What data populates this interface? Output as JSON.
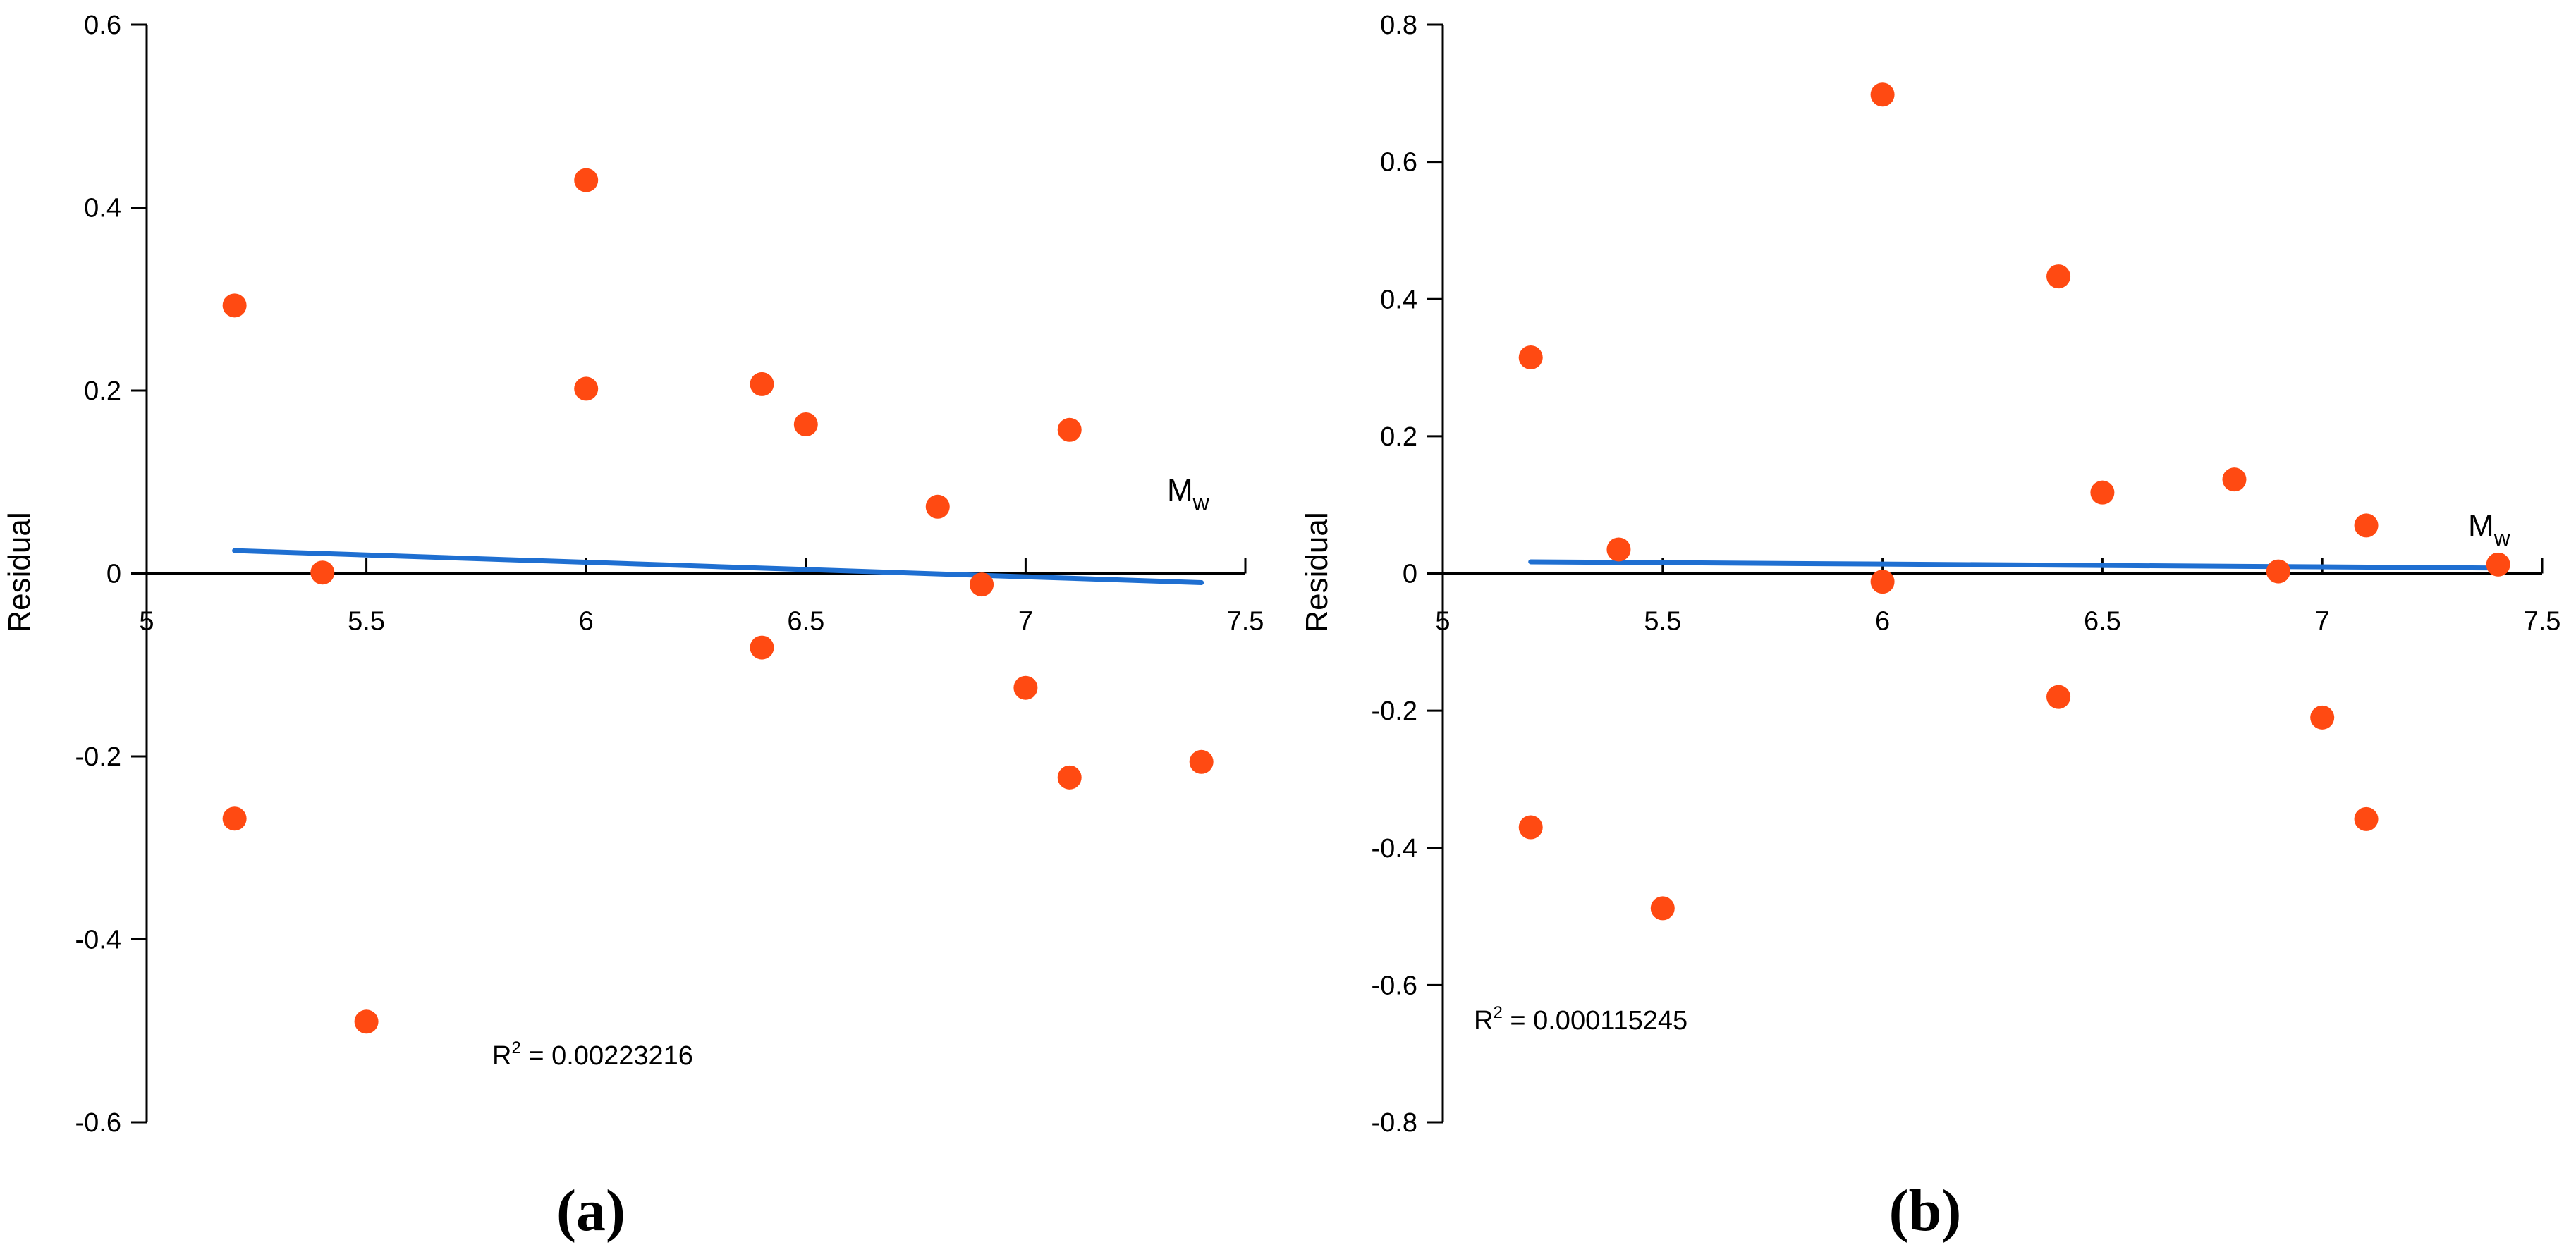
{
  "chart_data": [
    {
      "type": "scatter",
      "panel_label": "(a)",
      "ylabel": "Residual",
      "x_annotation": "M",
      "x_annotation_sub": "w",
      "xlim": [
        5,
        7.5
      ],
      "ylim": [
        -0.6,
        0.6
      ],
      "x_ticks": [
        5,
        5.5,
        6,
        6.5,
        7,
        7.5
      ],
      "x_tick_labels": [
        "5",
        "5.5",
        "6",
        "6.5",
        "7",
        "7.5"
      ],
      "y_ticks": [
        -0.6,
        -0.4,
        -0.2,
        0,
        0.2,
        0.4,
        0.6
      ],
      "y_tick_labels": [
        "-0.6",
        "-0.4",
        "-0.2",
        "0",
        "0.2",
        "0.4",
        "0.6"
      ],
      "points": [
        {
          "x": 5.2,
          "y": 0.293
        },
        {
          "x": 5.2,
          "y": -0.268
        },
        {
          "x": 5.4,
          "y": 0.001
        },
        {
          "x": 5.5,
          "y": -0.49
        },
        {
          "x": 6.0,
          "y": 0.43
        },
        {
          "x": 6.0,
          "y": 0.202
        },
        {
          "x": 6.4,
          "y": 0.207
        },
        {
          "x": 6.4,
          "y": -0.081
        },
        {
          "x": 6.5,
          "y": 0.163
        },
        {
          "x": 6.8,
          "y": 0.073
        },
        {
          "x": 6.9,
          "y": -0.012
        },
        {
          "x": 7.0,
          "y": -0.125
        },
        {
          "x": 7.1,
          "y": 0.157
        },
        {
          "x": 7.1,
          "y": -0.223
        },
        {
          "x": 7.4,
          "y": -0.206
        }
      ],
      "trendline": {
        "x": [
          5.2,
          7.4
        ],
        "y": [
          0.025,
          -0.01
        ]
      },
      "r2_label": "R",
      "r2_sup": "2",
      "r2_value": " = 0.00223216",
      "point_color": "#FF4A12",
      "line_color": "#1F6FD1"
    },
    {
      "type": "scatter",
      "panel_label": "(b)",
      "ylabel": "Residual",
      "x_annotation": "M",
      "x_annotation_sub": "w",
      "xlim": [
        5,
        7.5
      ],
      "ylim": [
        -0.8,
        0.8
      ],
      "x_ticks": [
        5,
        5.5,
        6,
        6.5,
        7,
        7.5
      ],
      "x_tick_labels": [
        "5",
        "5.5",
        "6",
        "6.5",
        "7",
        "7.5"
      ],
      "y_ticks": [
        -0.8,
        -0.6,
        -0.4,
        -0.2,
        0,
        0.2,
        0.4,
        0.6,
        0.8
      ],
      "y_tick_labels": [
        "-0.8",
        "-0.6",
        "-0.4",
        "-0.2",
        "0",
        "0.2",
        "0.4",
        "0.6",
        "0.8"
      ],
      "points": [
        {
          "x": 5.2,
          "y": 0.315
        },
        {
          "x": 5.2,
          "y": -0.37
        },
        {
          "x": 5.4,
          "y": 0.035
        },
        {
          "x": 5.5,
          "y": -0.488
        },
        {
          "x": 6.0,
          "y": 0.698
        },
        {
          "x": 6.0,
          "y": -0.012
        },
        {
          "x": 6.4,
          "y": 0.433
        },
        {
          "x": 6.4,
          "y": -0.18
        },
        {
          "x": 6.5,
          "y": 0.118
        },
        {
          "x": 6.8,
          "y": 0.137
        },
        {
          "x": 6.9,
          "y": 0.003
        },
        {
          "x": 7.0,
          "y": -0.21
        },
        {
          "x": 7.1,
          "y": 0.07
        },
        {
          "x": 7.1,
          "y": -0.358
        },
        {
          "x": 7.4,
          "y": 0.013
        }
      ],
      "trendline": {
        "x": [
          5.2,
          7.4
        ],
        "y": [
          0.017,
          0.008
        ]
      },
      "r2_label": "R",
      "r2_sup": "2",
      "r2_value": " = 0.000115245",
      "point_color": "#FF4A12",
      "line_color": "#1F6FD1"
    }
  ]
}
